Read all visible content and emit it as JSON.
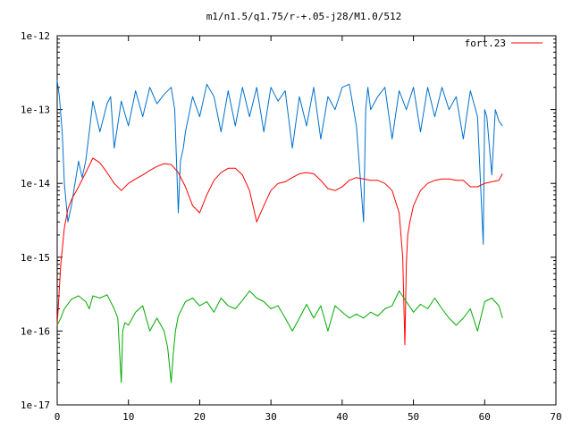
{
  "chart_data": {
    "type": "line",
    "title": "m1/n1.5/q1.75/r-+.05-j28/M1.0/512",
    "xlabel": "",
    "ylabel": "",
    "xlim": [
      0,
      70
    ],
    "ylim": [
      1e-17,
      1e-12
    ],
    "y_scale": "log",
    "grid": false,
    "legend_position": "top-right",
    "x_ticks": [
      0,
      10,
      20,
      30,
      40,
      50,
      60,
      70
    ],
    "x_tick_labels": [
      "0",
      "10",
      "20",
      "30",
      "40",
      "50",
      "60",
      "70"
    ],
    "y_ticks": [
      1e-17,
      1e-16,
      1e-15,
      1e-14,
      1e-13,
      1e-12
    ],
    "y_tick_labels": [
      "1e-17",
      "1e-16",
      "1e-15",
      "1e-14",
      "1e-13",
      "1e-12"
    ],
    "series": [
      {
        "name": "fort.23",
        "color": "#ff0000",
        "x": [
          0,
          0.5,
          1,
          1.5,
          2,
          3,
          4,
          5,
          6,
          7,
          8,
          9,
          10,
          11,
          12,
          13,
          14,
          15,
          16,
          17,
          18,
          19,
          20,
          21,
          22,
          23,
          24,
          25,
          26,
          27,
          28,
          29,
          30,
          31,
          32,
          33,
          34,
          35,
          36,
          37,
          38,
          39,
          40,
          41,
          42,
          43,
          44,
          45,
          46,
          47,
          48,
          48.5,
          48.8,
          49,
          49.2,
          49.5,
          50,
          51,
          52,
          53,
          54,
          55,
          56,
          57,
          58,
          59,
          60,
          61,
          62,
          62.5
        ],
        "values": [
          1.2e-16,
          8e-16,
          2.5e-15,
          4.5e-15,
          6e-15,
          9e-15,
          1.4e-14,
          2.2e-14,
          1.9e-14,
          1.4e-14,
          1e-14,
          8e-15,
          1e-14,
          1.15e-14,
          1.3e-14,
          1.5e-14,
          1.7e-14,
          1.85e-14,
          1.8e-14,
          1.4e-14,
          9e-15,
          5e-15,
          4e-15,
          7e-15,
          1.1e-14,
          1.4e-14,
          1.6e-14,
          1.6e-14,
          1.3e-14,
          8e-15,
          3e-15,
          5e-15,
          8e-15,
          1e-14,
          1.05e-14,
          1.2e-14,
          1.35e-14,
          1.4e-14,
          1.35e-14,
          1.1e-14,
          8.5e-15,
          8e-15,
          9e-15,
          1.1e-14,
          1.2e-14,
          1.15e-14,
          1.1e-14,
          1.1e-14,
          1e-14,
          8e-15,
          4e-15,
          1e-15,
          6.5e-17,
          8e-16,
          2e-15,
          3e-15,
          5e-15,
          8e-15,
          1e-14,
          1.1e-14,
          1.15e-14,
          1.15e-14,
          1.1e-14,
          1.1e-14,
          9e-15,
          9e-15,
          1e-14,
          1.05e-14,
          1.1e-14,
          1.35e-14
        ]
      },
      {
        "color": "#0070cc",
        "x": [
          0,
          0.3,
          0.7,
          1,
          1.5,
          2,
          2.5,
          3,
          3.5,
          4,
          4.5,
          5,
          6,
          7,
          7.5,
          8,
          9,
          10,
          11,
          12,
          13,
          14,
          15,
          16,
          16.5,
          17,
          17.3,
          17.7,
          18,
          19,
          20,
          21,
          22,
          23,
          24,
          25,
          26,
          27,
          28,
          29,
          30,
          31,
          32,
          33,
          34,
          35,
          36,
          37,
          38,
          39,
          40,
          41,
          42,
          43,
          43.3,
          43.6,
          44,
          45,
          46,
          47,
          48,
          49,
          50,
          51,
          52,
          53,
          54,
          55,
          56,
          57,
          58,
          59,
          59.8,
          60,
          60.3,
          61,
          61.5,
          62,
          62.5
        ],
        "values": [
          2.5e-13,
          1.5e-13,
          5e-14,
          1e-14,
          3e-15,
          5e-15,
          1e-14,
          2e-14,
          1.2e-14,
          2e-14,
          5e-14,
          1.3e-13,
          5e-14,
          1.2e-13,
          1.5e-13,
          3e-14,
          1.3e-13,
          6e-14,
          1.8e-13,
          8e-14,
          2e-13,
          1.2e-13,
          1.6e-13,
          2e-13,
          1e-13,
          4e-15,
          2e-14,
          3e-14,
          5e-14,
          1.5e-13,
          8e-14,
          2.2e-13,
          1.5e-13,
          5e-14,
          1.8e-13,
          6e-14,
          2e-13,
          8e-14,
          2e-13,
          5e-14,
          2e-13,
          1.3e-13,
          1.8e-13,
          3e-14,
          1.5e-13,
          6e-14,
          2e-13,
          4e-14,
          1.5e-13,
          1e-13,
          2e-13,
          2.2e-13,
          6e-14,
          3e-15,
          1e-13,
          2e-13,
          1e-13,
          1.5e-13,
          2e-13,
          4e-14,
          1.8e-13,
          1e-13,
          2e-13,
          5e-14,
          2e-13,
          8e-14,
          2e-13,
          1e-13,
          1.5e-13,
          4e-14,
          1.8e-13,
          8e-14,
          1.5e-15,
          1e-13,
          8e-14,
          1.3e-14,
          1e-13,
          7e-14,
          6e-14
        ]
      },
      {
        "color": "#00aa00",
        "x": [
          0,
          0.5,
          1,
          2,
          3,
          4,
          4.5,
          5,
          6,
          7,
          8,
          8.5,
          9,
          9.2,
          9.5,
          10,
          11,
          12,
          13,
          14,
          15,
          15.5,
          16,
          16.3,
          16.6,
          17,
          18,
          19,
          20,
          21,
          22,
          23,
          24,
          25,
          26,
          27,
          28,
          29,
          30,
          31,
          32,
          33,
          34,
          35,
          36,
          37,
          38,
          39,
          40,
          41,
          42,
          43,
          44,
          45,
          46,
          47,
          48,
          49,
          50,
          51,
          52,
          53,
          54,
          55,
          56,
          57,
          58,
          59,
          60,
          61,
          62,
          62.5
        ],
        "values": [
          1.2e-16,
          1.5e-16,
          2e-16,
          2.7e-16,
          3e-16,
          2.5e-16,
          2e-16,
          3e-16,
          2.8e-16,
          3.1e-16,
          2e-16,
          1.5e-16,
          2e-17,
          1e-16,
          1.3e-16,
          1.2e-16,
          1.8e-16,
          2.2e-16,
          1e-16,
          1.5e-16,
          1e-16,
          6e-17,
          2e-17,
          5e-17,
          1e-16,
          1.6e-16,
          2.5e-16,
          2.8e-16,
          2.2e-16,
          2.5e-16,
          1.8e-16,
          2.8e-16,
          2.2e-16,
          2e-16,
          2.6e-16,
          3.5e-16,
          2.8e-16,
          2.5e-16,
          2e-16,
          2.2e-16,
          1.5e-16,
          1e-16,
          1.5e-16,
          2.3e-16,
          1.5e-16,
          2.2e-16,
          1e-16,
          2.2e-16,
          1.8e-16,
          1.5e-16,
          1.7e-16,
          1.5e-16,
          1.8e-16,
          1.6e-16,
          2e-16,
          2.2e-16,
          3.5e-16,
          2.5e-16,
          1.8e-16,
          2.3e-16,
          2e-16,
          2.8e-16,
          2e-16,
          1.5e-16,
          1.2e-16,
          1.5e-16,
          2e-16,
          1e-16,
          2.5e-16,
          2.8e-16,
          2.2e-16,
          1.5e-16
        ]
      }
    ]
  }
}
